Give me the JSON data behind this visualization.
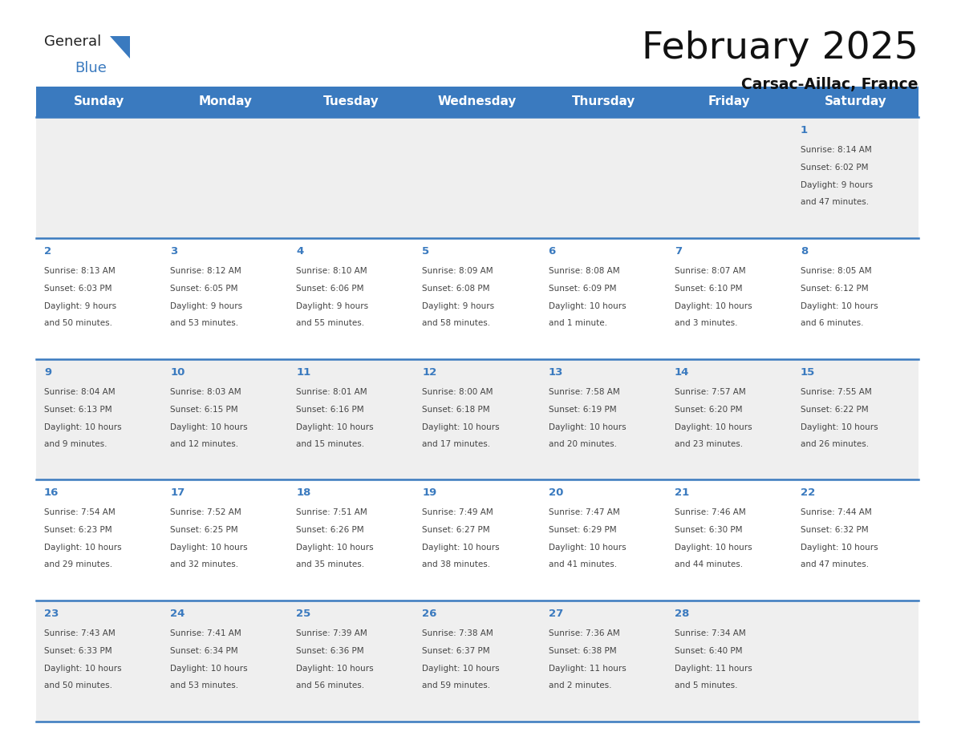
{
  "title": "February 2025",
  "subtitle": "Carsac-Aillac, France",
  "header_bg_color": "#3a7abf",
  "header_text_color": "#ffffff",
  "day_names": [
    "Sunday",
    "Monday",
    "Tuesday",
    "Wednesday",
    "Thursday",
    "Friday",
    "Saturday"
  ],
  "row_colors": [
    "#efefef",
    "#ffffff"
  ],
  "date_color": "#3a7abf",
  "text_color": "#444444",
  "line_color": "#3a7abf",
  "calendar": [
    [
      {
        "date": "",
        "sunrise": "",
        "sunset": "",
        "daylight": ""
      },
      {
        "date": "",
        "sunrise": "",
        "sunset": "",
        "daylight": ""
      },
      {
        "date": "",
        "sunrise": "",
        "sunset": "",
        "daylight": ""
      },
      {
        "date": "",
        "sunrise": "",
        "sunset": "",
        "daylight": ""
      },
      {
        "date": "",
        "sunrise": "",
        "sunset": "",
        "daylight": ""
      },
      {
        "date": "",
        "sunrise": "",
        "sunset": "",
        "daylight": ""
      },
      {
        "date": "1",
        "sunrise": "8:14 AM",
        "sunset": "6:02 PM",
        "daylight": "9 hours\nand 47 minutes."
      }
    ],
    [
      {
        "date": "2",
        "sunrise": "8:13 AM",
        "sunset": "6:03 PM",
        "daylight": "9 hours\nand 50 minutes."
      },
      {
        "date": "3",
        "sunrise": "8:12 AM",
        "sunset": "6:05 PM",
        "daylight": "9 hours\nand 53 minutes."
      },
      {
        "date": "4",
        "sunrise": "8:10 AM",
        "sunset": "6:06 PM",
        "daylight": "9 hours\nand 55 minutes."
      },
      {
        "date": "5",
        "sunrise": "8:09 AM",
        "sunset": "6:08 PM",
        "daylight": "9 hours\nand 58 minutes."
      },
      {
        "date": "6",
        "sunrise": "8:08 AM",
        "sunset": "6:09 PM",
        "daylight": "10 hours\nand 1 minute."
      },
      {
        "date": "7",
        "sunrise": "8:07 AM",
        "sunset": "6:10 PM",
        "daylight": "10 hours\nand 3 minutes."
      },
      {
        "date": "8",
        "sunrise": "8:05 AM",
        "sunset": "6:12 PM",
        "daylight": "10 hours\nand 6 minutes."
      }
    ],
    [
      {
        "date": "9",
        "sunrise": "8:04 AM",
        "sunset": "6:13 PM",
        "daylight": "10 hours\nand 9 minutes."
      },
      {
        "date": "10",
        "sunrise": "8:03 AM",
        "sunset": "6:15 PM",
        "daylight": "10 hours\nand 12 minutes."
      },
      {
        "date": "11",
        "sunrise": "8:01 AM",
        "sunset": "6:16 PM",
        "daylight": "10 hours\nand 15 minutes."
      },
      {
        "date": "12",
        "sunrise": "8:00 AM",
        "sunset": "6:18 PM",
        "daylight": "10 hours\nand 17 minutes."
      },
      {
        "date": "13",
        "sunrise": "7:58 AM",
        "sunset": "6:19 PM",
        "daylight": "10 hours\nand 20 minutes."
      },
      {
        "date": "14",
        "sunrise": "7:57 AM",
        "sunset": "6:20 PM",
        "daylight": "10 hours\nand 23 minutes."
      },
      {
        "date": "15",
        "sunrise": "7:55 AM",
        "sunset": "6:22 PM",
        "daylight": "10 hours\nand 26 minutes."
      }
    ],
    [
      {
        "date": "16",
        "sunrise": "7:54 AM",
        "sunset": "6:23 PM",
        "daylight": "10 hours\nand 29 minutes."
      },
      {
        "date": "17",
        "sunrise": "7:52 AM",
        "sunset": "6:25 PM",
        "daylight": "10 hours\nand 32 minutes."
      },
      {
        "date": "18",
        "sunrise": "7:51 AM",
        "sunset": "6:26 PM",
        "daylight": "10 hours\nand 35 minutes."
      },
      {
        "date": "19",
        "sunrise": "7:49 AM",
        "sunset": "6:27 PM",
        "daylight": "10 hours\nand 38 minutes."
      },
      {
        "date": "20",
        "sunrise": "7:47 AM",
        "sunset": "6:29 PM",
        "daylight": "10 hours\nand 41 minutes."
      },
      {
        "date": "21",
        "sunrise": "7:46 AM",
        "sunset": "6:30 PM",
        "daylight": "10 hours\nand 44 minutes."
      },
      {
        "date": "22",
        "sunrise": "7:44 AM",
        "sunset": "6:32 PM",
        "daylight": "10 hours\nand 47 minutes."
      }
    ],
    [
      {
        "date": "23",
        "sunrise": "7:43 AM",
        "sunset": "6:33 PM",
        "daylight": "10 hours\nand 50 minutes."
      },
      {
        "date": "24",
        "sunrise": "7:41 AM",
        "sunset": "6:34 PM",
        "daylight": "10 hours\nand 53 minutes."
      },
      {
        "date": "25",
        "sunrise": "7:39 AM",
        "sunset": "6:36 PM",
        "daylight": "10 hours\nand 56 minutes."
      },
      {
        "date": "26",
        "sunrise": "7:38 AM",
        "sunset": "6:37 PM",
        "daylight": "10 hours\nand 59 minutes."
      },
      {
        "date": "27",
        "sunrise": "7:36 AM",
        "sunset": "6:38 PM",
        "daylight": "11 hours\nand 2 minutes."
      },
      {
        "date": "28",
        "sunrise": "7:34 AM",
        "sunset": "6:40 PM",
        "daylight": "11 hours\nand 5 minutes."
      },
      {
        "date": "",
        "sunrise": "",
        "sunset": "",
        "daylight": ""
      }
    ]
  ],
  "logo_general_color": "#222222",
  "logo_blue_color": "#3a7abf",
  "background_color": "#ffffff"
}
